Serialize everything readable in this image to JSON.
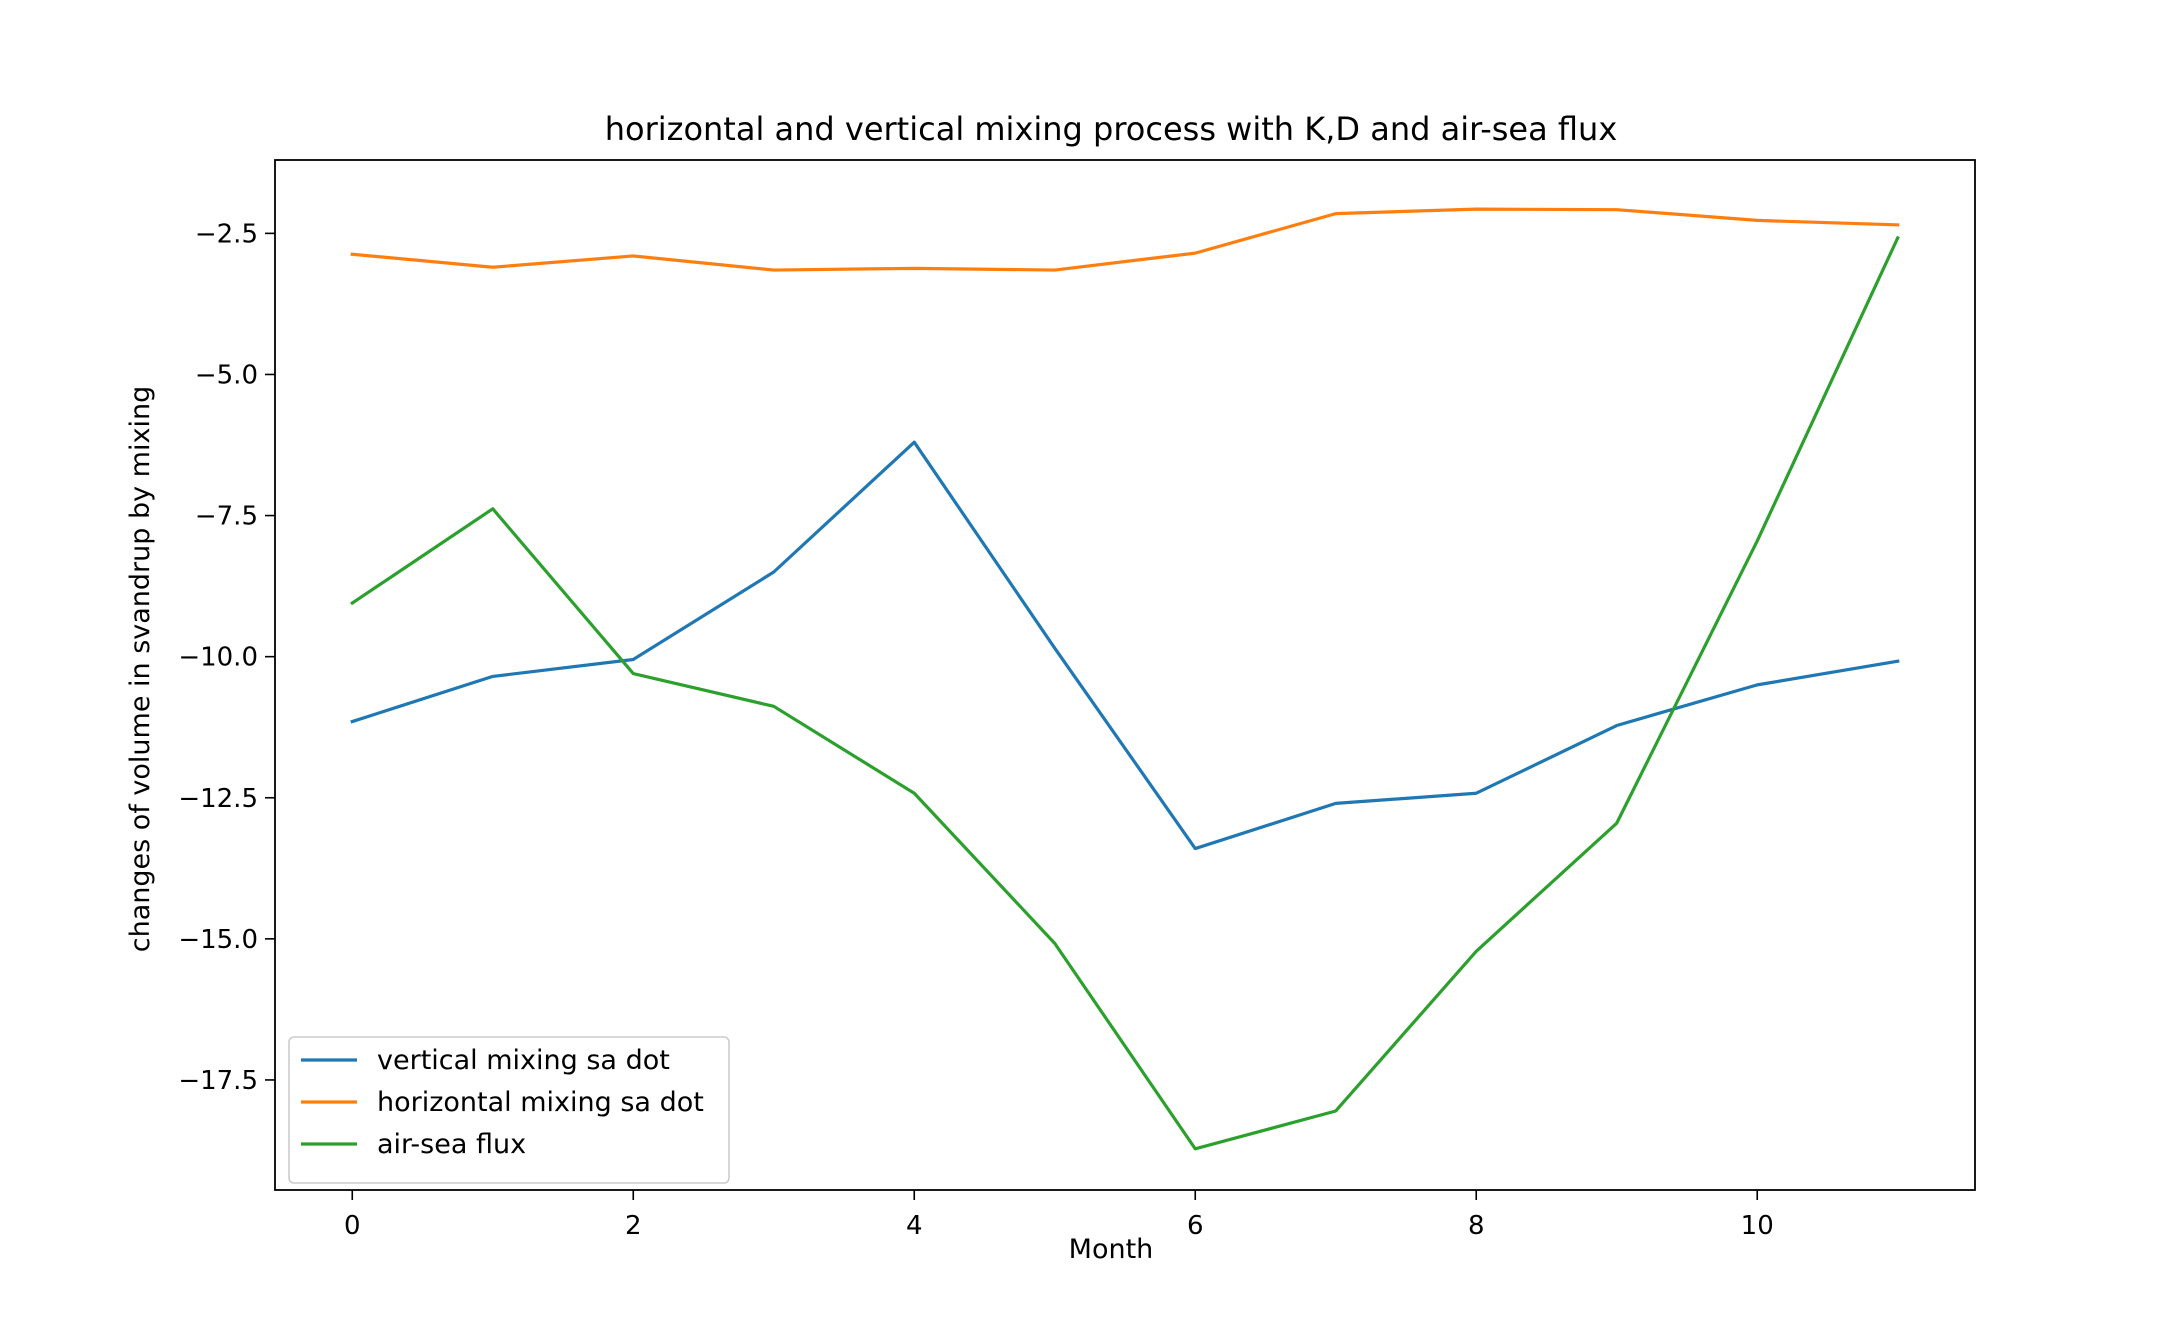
{
  "chart_data": {
    "type": "line",
    "title": "horizontal and vertical mixing process with K,D and air-sea flux",
    "xlabel": "Month",
    "ylabel": "changes of volume in svandrup by mixing",
    "xlim": [
      -0.55,
      11.55
    ],
    "ylim": [
      -19.45,
      -1.2
    ],
    "xticks": [
      0,
      2,
      4,
      6,
      8,
      10
    ],
    "xtick_labels": [
      "0",
      "2",
      "4",
      "6",
      "8",
      "10"
    ],
    "yticks": [
      -2.5,
      -5.0,
      -7.5,
      -10.0,
      -12.5,
      -15.0,
      -17.5
    ],
    "ytick_labels": [
      "−2.5",
      "−5.0",
      "−7.5",
      "−10.0",
      "−12.5",
      "−15.0",
      "−17.5"
    ],
    "grid": false,
    "legend_position": "lower left",
    "x": [
      0,
      1,
      2,
      3,
      4,
      5,
      6,
      7,
      8,
      9,
      10,
      11
    ],
    "series": [
      {
        "name": "vertical mixing sa dot",
        "color": "#1f77b4",
        "values": [
          -11.15,
          -10.35,
          -10.05,
          -8.5,
          -6.2,
          -9.85,
          -13.4,
          -12.6,
          -12.42,
          -11.22,
          -10.5,
          -10.08
        ]
      },
      {
        "name": "horizontal mixing sa dot",
        "color": "#ff7f0e",
        "values": [
          -2.87,
          -3.1,
          -2.9,
          -3.15,
          -3.12,
          -3.15,
          -2.85,
          -2.15,
          -2.07,
          -2.08,
          -2.27,
          -2.35
        ]
      },
      {
        "name": "air-sea flux",
        "color": "#2ca02c",
        "values": [
          -9.05,
          -7.38,
          -10.3,
          -10.88,
          -12.42,
          -15.08,
          -18.72,
          -18.05,
          -15.22,
          -12.95,
          -7.95,
          -2.58
        ]
      }
    ]
  }
}
